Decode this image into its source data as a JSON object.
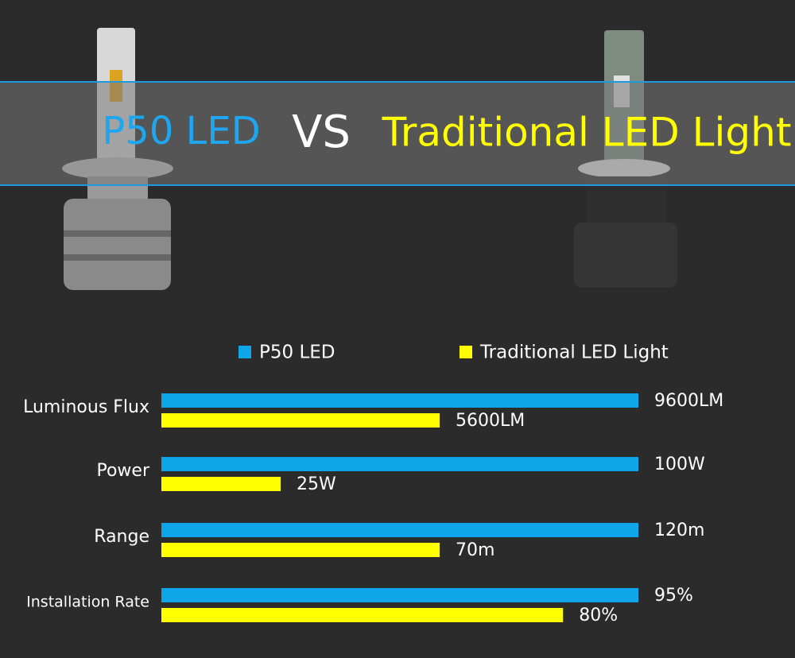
{
  "chart_data": {
    "type": "bar",
    "orientation": "horizontal",
    "header": [
      "P50 LED",
      "VS",
      "Traditional LED Light"
    ],
    "categories": [
      "Luminous Flux",
      "Power",
      "Range",
      "Installation Rate"
    ],
    "series": [
      {
        "name": "P50 LED",
        "color": "#0ea5e9",
        "values": [
          9600,
          100,
          120,
          95
        ],
        "value_labels": [
          "9600LM",
          "100W",
          "120m",
          "95%"
        ]
      },
      {
        "name": "Traditional LED Light",
        "color": "#ffff00",
        "values": [
          5600,
          25,
          70,
          80
        ],
        "value_labels": [
          "5600LM",
          "25W",
          "70m",
          "80%"
        ]
      }
    ]
  }
}
